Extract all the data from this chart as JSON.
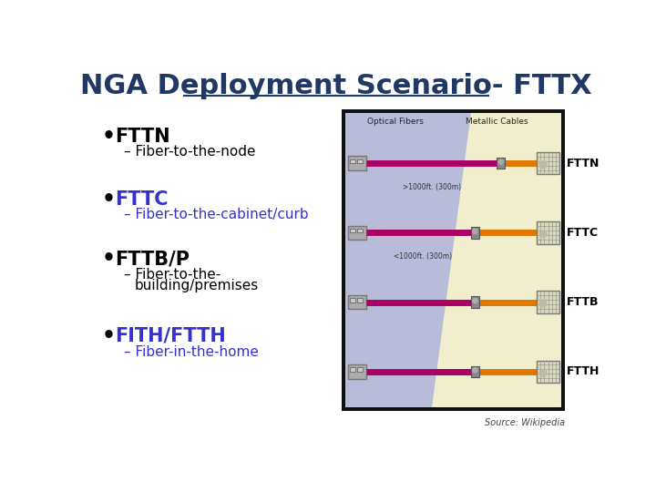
{
  "title": "NGA Deployment Scenario- FTTX",
  "title_color": "#1F3864",
  "title_fontsize": 22,
  "background_color": "#ffffff",
  "bullets": [
    {
      "label": "FTTN",
      "label_color": "#000000",
      "sub": "Fiber-to-the-node",
      "sub_color": "#000000"
    },
    {
      "label": "FTTC",
      "label_color": "#3333cc",
      "sub": "Fiber-to-the-cabinet/curb",
      "sub_color": "#3333cc"
    },
    {
      "label": "FTTB/P",
      "label_color": "#000000",
      "sub_line1": "Fiber-to-the-",
      "sub_line2": "building/premises",
      "sub_color": "#000000"
    },
    {
      "label": "FITH/FTTH",
      "label_color": "#3333cc",
      "sub": "Fiber-in-the-home",
      "sub_color": "#3333cc"
    }
  ],
  "source_text": "Source: Wikipedia",
  "diagram_labels": [
    "FTTN",
    "FTTC",
    "FTTB",
    "FTTH"
  ],
  "diagram_label_color": "#000000",
  "optical_fibers_label": "Optical Fibers",
  "metallic_cables_label": "Metallic Cables",
  "distance_label1": ">1000ft. (300m)",
  "distance_label2": "<1000ft. (300m)",
  "fiber_color": "#aa0066",
  "metallic_color": "#e07800",
  "bg_blue": "#b8bcd8",
  "bg_yellow": "#f0eecc"
}
